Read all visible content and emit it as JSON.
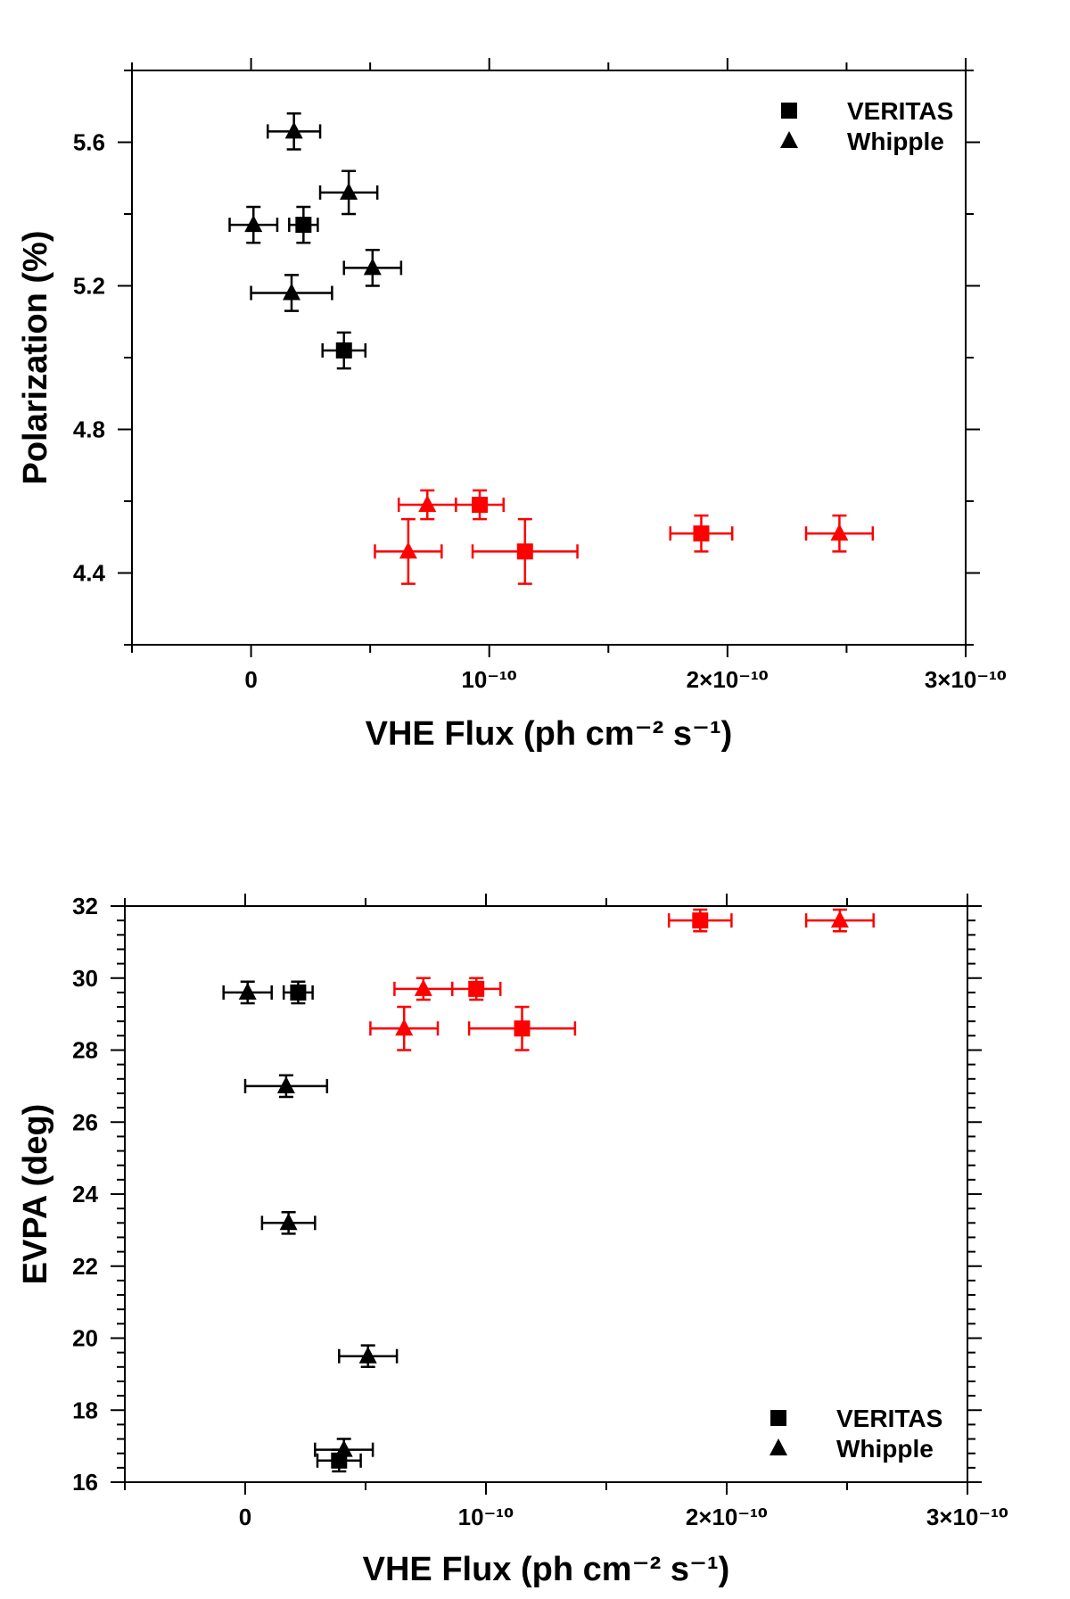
{
  "chart_data": [
    {
      "type": "scatter",
      "title": "",
      "xlabel": "VHE Flux (ph cm⁻² s⁻¹)",
      "ylabel": "Polarization (%)",
      "xlim": [
        -5e-11,
        3e-10
      ],
      "ylim": [
        4.2,
        5.8
      ],
      "xticks": [
        0,
        1e-10,
        2e-10,
        3e-10
      ],
      "xtick_labels": [
        "0",
        "10⁻¹⁰",
        "2×10⁻¹⁰",
        "3×10⁻¹⁰"
      ],
      "yticks": [
        4.4,
        4.8,
        5.2,
        5.6
      ],
      "ytick_labels": [
        "4.4",
        "4.8",
        "5.2",
        "5.6"
      ],
      "legend": {
        "position": "top-right",
        "entries": [
          {
            "label": "VERITAS",
            "marker": "square"
          },
          {
            "label": "Whipple",
            "marker": "triangle"
          }
        ]
      },
      "series": [
        {
          "name": "VERITAS",
          "marker": "square",
          "color": "#000000",
          "points": [
            {
              "x": 2.2e-11,
              "y": 5.37,
              "xerr": 6e-12,
              "yerr": 0.05
            },
            {
              "x": 3.9e-11,
              "y": 5.02,
              "xerr": 9e-12,
              "yerr": 0.05
            }
          ]
        },
        {
          "name": "Whipple",
          "marker": "triangle",
          "color": "#000000",
          "points": [
            {
              "x": 1.8e-11,
              "y": 5.63,
              "xerr": 1.1e-11,
              "yerr": 0.05
            },
            {
              "x": 4.1e-11,
              "y": 5.46,
              "xerr": 1.2e-11,
              "yerr": 0.06
            },
            {
              "x": 1e-12,
              "y": 5.37,
              "xerr": 1e-11,
              "yerr": 0.05
            },
            {
              "x": 5.1e-11,
              "y": 5.25,
              "xerr": 1.2e-11,
              "yerr": 0.05
            },
            {
              "x": 1.7e-11,
              "y": 5.18,
              "xerr": 1.7e-11,
              "yerr": 0.05
            }
          ]
        },
        {
          "name": "VERITAS (red)",
          "marker": "square",
          "color": "#ff0000",
          "points": [
            {
              "x": 9.6e-11,
              "y": 4.59,
              "xerr": 1e-11,
              "yerr": 0.04
            },
            {
              "x": 1.15e-10,
              "y": 4.46,
              "xerr": 2.2e-11,
              "yerr": 0.09
            },
            {
              "x": 1.89e-10,
              "y": 4.51,
              "xerr": 1.3e-11,
              "yerr": 0.05
            }
          ]
        },
        {
          "name": "Whipple (red)",
          "marker": "triangle",
          "color": "#ff0000",
          "points": [
            {
              "x": 7.4e-11,
              "y": 4.59,
              "xerr": 1.2e-11,
              "yerr": 0.04
            },
            {
              "x": 6.6e-11,
              "y": 4.46,
              "xerr": 1.4e-11,
              "yerr": 0.09
            },
            {
              "x": 2.47e-10,
              "y": 4.51,
              "xerr": 1.4e-11,
              "yerr": 0.05
            }
          ]
        }
      ]
    },
    {
      "type": "scatter",
      "title": "",
      "xlabel": "VHE Flux (ph cm⁻² s⁻¹)",
      "ylabel": "EVPA (deg)",
      "xlim": [
        -5e-11,
        3e-10
      ],
      "ylim": [
        16,
        32
      ],
      "xticks": [
        0,
        1e-10,
        2e-10,
        3e-10
      ],
      "xtick_labels": [
        "0",
        "10⁻¹⁰",
        "2×10⁻¹⁰",
        "3×10⁻¹⁰"
      ],
      "yticks": [
        16,
        18,
        20,
        22,
        24,
        26,
        28,
        30,
        32
      ],
      "ytick_labels": [
        "16",
        "18",
        "20",
        "22",
        "24",
        "26",
        "28",
        "30",
        "32"
      ],
      "legend": {
        "position": "bottom-right",
        "entries": [
          {
            "label": "VERITAS",
            "marker": "square"
          },
          {
            "label": "Whipple",
            "marker": "triangle"
          }
        ]
      },
      "series": [
        {
          "name": "VERITAS",
          "marker": "square",
          "color": "#000000",
          "points": [
            {
              "x": 2.2e-11,
              "y": 29.6,
              "xerr": 6e-12,
              "yerr": 0.3
            },
            {
              "x": 3.9e-11,
              "y": 16.6,
              "xerr": 9e-12,
              "yerr": 0.3
            }
          ]
        },
        {
          "name": "Whipple",
          "marker": "triangle",
          "color": "#000000",
          "points": [
            {
              "x": 1e-12,
              "y": 29.6,
              "xerr": 1e-11,
              "yerr": 0.3
            },
            {
              "x": 1.7e-11,
              "y": 27.0,
              "xerr": 1.7e-11,
              "yerr": 0.3
            },
            {
              "x": 1.8e-11,
              "y": 23.2,
              "xerr": 1.1e-11,
              "yerr": 0.3
            },
            {
              "x": 5.1e-11,
              "y": 19.5,
              "xerr": 1.2e-11,
              "yerr": 0.3
            },
            {
              "x": 4.1e-11,
              "y": 16.9,
              "xerr": 1.2e-11,
              "yerr": 0.3
            }
          ]
        },
        {
          "name": "VERITAS (red)",
          "marker": "square",
          "color": "#ff0000",
          "points": [
            {
              "x": 9.6e-11,
              "y": 29.7,
              "xerr": 1e-11,
              "yerr": 0.3
            },
            {
              "x": 1.15e-10,
              "y": 28.6,
              "xerr": 2.2e-11,
              "yerr": 0.6
            },
            {
              "x": 1.89e-10,
              "y": 31.6,
              "xerr": 1.3e-11,
              "yerr": 0.3
            }
          ]
        },
        {
          "name": "Whipple (red)",
          "marker": "triangle",
          "color": "#ff0000",
          "points": [
            {
              "x": 7.4e-11,
              "y": 29.7,
              "xerr": 1.2e-11,
              "yerr": 0.3
            },
            {
              "x": 6.6e-11,
              "y": 28.6,
              "xerr": 1.4e-11,
              "yerr": 0.6
            },
            {
              "x": 2.47e-10,
              "y": 31.6,
              "xerr": 1.4e-11,
              "yerr": 0.3
            }
          ]
        }
      ]
    }
  ]
}
